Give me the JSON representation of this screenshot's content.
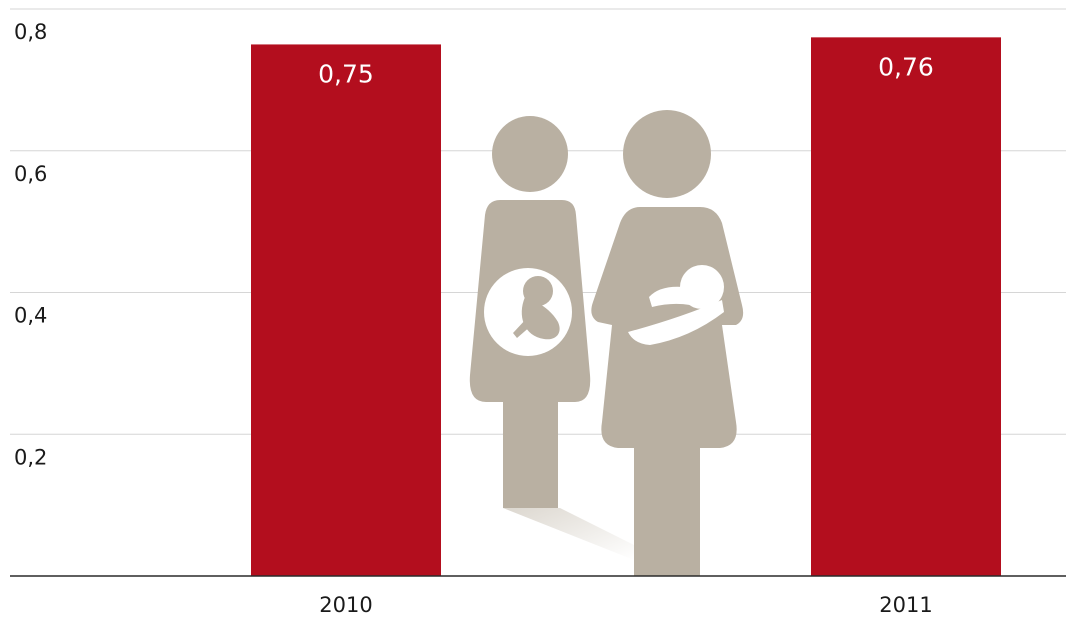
{
  "chart_data": {
    "type": "bar",
    "categories": [
      "2010",
      "2011"
    ],
    "values": [
      0.75,
      0.76
    ],
    "value_labels": [
      "0,75",
      "0,76"
    ],
    "ylim": [
      0,
      0.8
    ],
    "yticks": [
      0.2,
      0.4,
      0.6,
      0.8
    ],
    "ytick_labels": [
      "0,2",
      "0,4",
      "0,6",
      "0,8"
    ],
    "grid": true,
    "title": "",
    "xlabel": "",
    "ylabel": ""
  },
  "colors": {
    "bar": "#b30e1e",
    "grid": "#d6d6d6",
    "axis": "#2a2a2a",
    "figure": "#b9b0a2",
    "shadow": "#e4e0da"
  },
  "illustration": {
    "icons": [
      "pregnant-woman-icon",
      "mother-with-baby-icon"
    ]
  }
}
